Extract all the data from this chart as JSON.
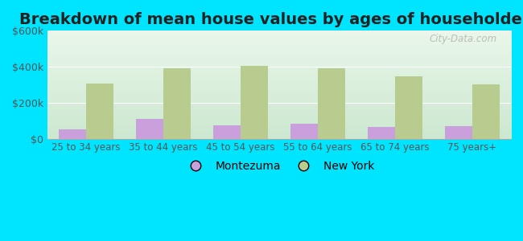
{
  "title": "Breakdown of mean house values by ages of householders",
  "categories": [
    "25 to 34 years",
    "35 to 44 years",
    "45 to 54 years",
    "55 to 64 years",
    "65 to 74 years",
    "75 years+"
  ],
  "montezuma": [
    50000,
    110000,
    75000,
    85000,
    65000,
    70000
  ],
  "new_york": [
    305000,
    390000,
    405000,
    390000,
    345000,
    300000
  ],
  "montezuma_color": "#c9a0dc",
  "new_york_color": "#b8cc90",
  "ylim": [
    0,
    600000
  ],
  "yticks": [
    0,
    200000,
    400000,
    600000
  ],
  "ytick_labels": [
    "$0",
    "$200k",
    "$400k",
    "$600k"
  ],
  "background_color": "#00e5ff",
  "plot_bg_top": "#e0f0e8",
  "plot_bg_bottom": "#d8eedd",
  "title_fontsize": 14,
  "legend_labels": [
    "Montezuma",
    "New York"
  ],
  "bar_width": 0.35,
  "watermark": "City-Data.com"
}
